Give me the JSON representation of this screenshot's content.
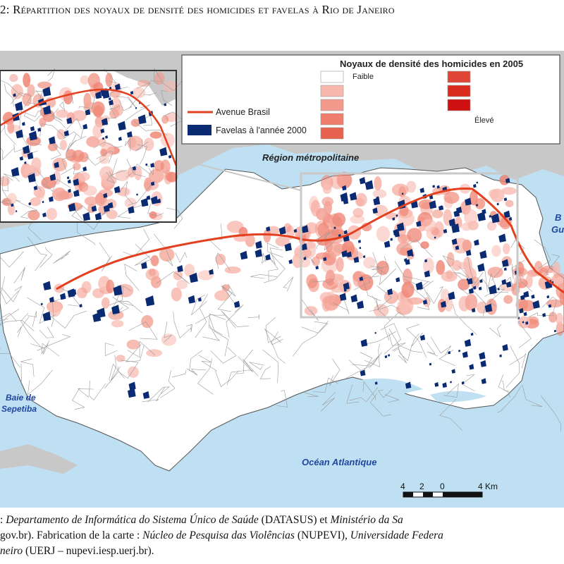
{
  "title": "2: Répartition des noyaux de densité des homicides et favelas à Rio de Janeiro",
  "legend": {
    "title": "Noyaux de densité des homicides en 2005",
    "low_label": "Faible",
    "high_label": "Élevé",
    "class_colors": [
      "#ffffff",
      "#f8b7ad",
      "#f39a8c",
      "#ee7d6b",
      "#e8614e",
      "#e04636",
      "#d92c1f",
      "#cf1010"
    ],
    "avenue_label": "Avenue Brasil",
    "favelas_label": "Favelas à l'année 2000"
  },
  "colors": {
    "sea": "#bfe0f2",
    "land": "#ffffff",
    "outside_region": "#c8c8c8",
    "avenue": "#e2401f",
    "favela": "#0a2a72",
    "homicide_kernel": "#f08878",
    "water_label": "#2046a0"
  },
  "places": {
    "region_metropolitaine": "Région métropolitaine",
    "baie_sepetiba_1": "Baie de",
    "baie_sepetiba_2": "Sepetiba",
    "ocean": "Océan Atlantique",
    "baie_guanabara_1": "B",
    "baie_guanabara_2": "Gu"
  },
  "scale_bar": {
    "ticks": [
      "4",
      "2",
      "0",
      "4 Km"
    ]
  },
  "caption": {
    "line1_a": ": ",
    "line1_b": "Departamento de Informática do Sistema Único de Saúde",
    "line1_c": " (DATASUS) et ",
    "line1_d": "Ministério da Sa",
    "line2_a": "gov.br). Fabrication de la carte : ",
    "line2_b": "Núcleo de Pesquisa das Violências",
    "line2_c": " (NUPEVI), ",
    "line2_d": "Universidade Federa",
    "line3_a": "neiro",
    "line3_b": " (UERJ – nupevi.iesp.uerj.br)."
  }
}
